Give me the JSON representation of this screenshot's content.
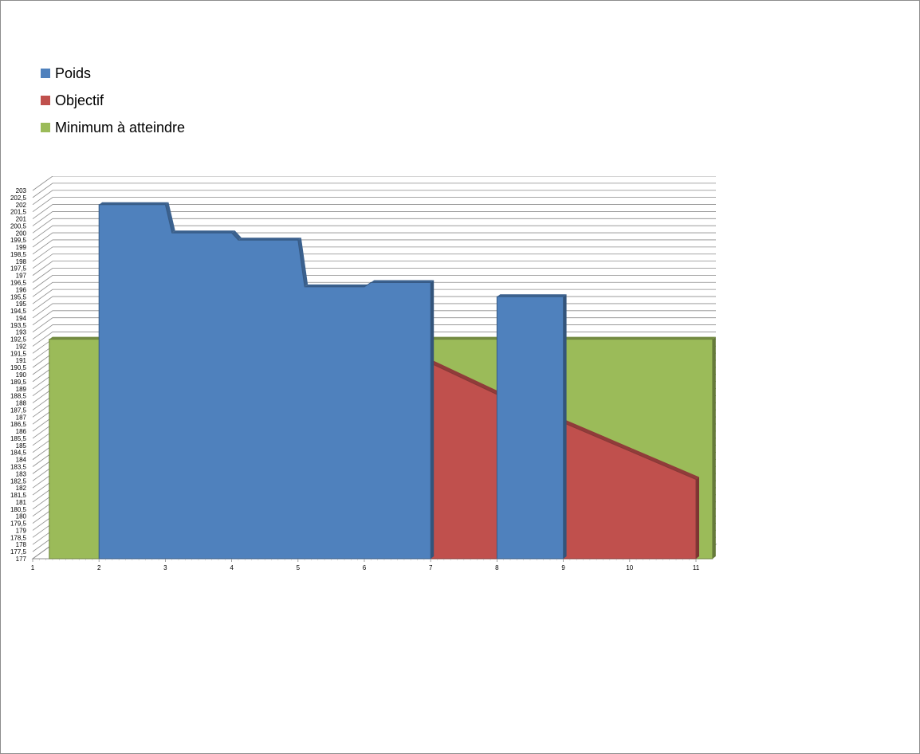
{
  "chart_data": {
    "type": "area",
    "x": [
      1,
      2,
      3,
      4,
      5,
      6,
      7,
      8,
      9,
      10,
      11
    ],
    "ylim": [
      177,
      203
    ],
    "ystep": 0.5,
    "series": [
      {
        "name": "Poids",
        "color": "#4f81bd",
        "segments": [
          [
            [
              2,
              202
            ],
            [
              3,
              202
            ],
            [
              3.1,
              200
            ],
            [
              4,
              200
            ],
            [
              4.1,
              199.5
            ],
            [
              5,
              199.5
            ],
            [
              5.1,
              196.2
            ],
            [
              6,
              196.2
            ],
            [
              6.1,
              196.5
            ],
            [
              7,
              196.5
            ]
          ],
          [
            [
              8,
              195.5
            ],
            [
              9,
              195.5
            ]
          ]
        ]
      },
      {
        "name": "Objectif",
        "color": "#c0504d",
        "points": [
          [
            7,
            191
          ],
          [
            8,
            188.8
          ],
          [
            9,
            186.8
          ],
          [
            10,
            184.8
          ],
          [
            11,
            182.8
          ]
        ]
      },
      {
        "name": "Minimum à atteindre",
        "color": "#9bbb59",
        "points": [
          [
            1,
            192.5
          ],
          [
            11,
            192.5
          ]
        ]
      }
    ]
  }
}
